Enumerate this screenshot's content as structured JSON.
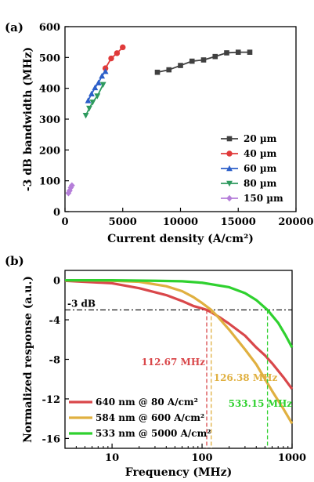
{
  "chart_data": [
    {
      "type": "line",
      "panel_label": "(a)",
      "xlabel": "Current density (A/cm²)",
      "ylabel": "-3 dB bandwidth (MHz)",
      "xlim": [
        0,
        20000
      ],
      "ylim": [
        0,
        600
      ],
      "xticks": [
        "0",
        "5000",
        "10000",
        "15000",
        "20000"
      ],
      "yticks": [
        "0",
        "100",
        "200",
        "300",
        "400",
        "500",
        "600"
      ],
      "legend_position": "bottom-right",
      "series": [
        {
          "name": "20 µm",
          "color": "#404040",
          "marker": "square",
          "x": [
            8000,
            9000,
            10000,
            11000,
            12000,
            13000,
            14000,
            15000,
            16000
          ],
          "y": [
            452,
            460,
            474,
            488,
            492,
            503,
            515,
            517,
            517
          ]
        },
        {
          "name": "40 µm",
          "color": "#e03a3a",
          "marker": "circle",
          "x": [
            3500,
            4000,
            4500,
            5000
          ],
          "y": [
            465,
            497,
            514,
            533
          ]
        },
        {
          "name": "60 µm",
          "color": "#2c5fc9",
          "marker": "triangle-up",
          "x": [
            2000,
            2300,
            2600,
            2900,
            3200,
            3500
          ],
          "y": [
            360,
            382,
            402,
            418,
            440,
            455
          ]
        },
        {
          "name": "80 µm",
          "color": "#2e9a5e",
          "marker": "triangle-down",
          "x": [
            1800,
            2100,
            2400,
            2800,
            3300
          ],
          "y": [
            312,
            335,
            355,
            375,
            412
          ]
        },
        {
          "name": "150 µm",
          "color": "#b57ed9",
          "marker": "diamond",
          "x": [
            300,
            400,
            500,
            600
          ],
          "y": [
            60,
            68,
            78,
            85
          ]
        }
      ]
    },
    {
      "type": "line",
      "panel_label": "(b)",
      "xlabel": "Frequency (MHz)",
      "ylabel": "Normalized response (a.u.)",
      "xscale": "log",
      "xlim": [
        3,
        1000
      ],
      "ylim": [
        -17,
        1
      ],
      "xticks": [
        "10",
        "100",
        "1000"
      ],
      "yticks": [
        "0",
        "-4",
        "-8",
        "-12",
        "-16"
      ],
      "legend_position": "bottom-left",
      "reference_line": {
        "label": "-3 dB",
        "y": -3
      },
      "series": [
        {
          "name": "640 nm @ 80 A/cm²",
          "color": "#d9474a",
          "f3db": 112.67,
          "f3db_label": "112.67 MHz",
          "x": [
            3,
            10,
            20,
            40,
            60,
            80,
            100,
            112.67,
            130,
            160,
            200,
            300,
            400,
            500,
            600,
            800,
            1000
          ],
          "y": [
            -0.05,
            -0.3,
            -0.8,
            -1.5,
            -2.1,
            -2.6,
            -2.85,
            -3,
            -3.3,
            -3.8,
            -4.4,
            -5.6,
            -6.8,
            -7.6,
            -8.4,
            -9.8,
            -11
          ]
        },
        {
          "name": "584 nm @ 600 A/cm²",
          "color": "#e0b040",
          "f3db": 126.38,
          "f3db_label": "126.38 MHz",
          "x": [
            3,
            10,
            20,
            40,
            60,
            80,
            100,
            126.38,
            150,
            200,
            300,
            400,
            500,
            600,
            800,
            1000
          ],
          "y": [
            0,
            -0.05,
            -0.15,
            -0.6,
            -1.1,
            -1.7,
            -2.3,
            -3,
            -3.7,
            -5,
            -7,
            -8.5,
            -10,
            -11.2,
            -13,
            -14.5
          ]
        },
        {
          "name": "533 nm @ 5000 A/cm²",
          "color": "#2fd12f",
          "f3db": 533.15,
          "f3db_label": "533.15 MHz",
          "x": [
            3,
            10,
            30,
            60,
            100,
            200,
            300,
            400,
            533.15,
            700,
            850,
            1000
          ],
          "y": [
            0,
            0,
            -0.05,
            -0.1,
            -0.25,
            -0.7,
            -1.3,
            -2,
            -3,
            -4.3,
            -5.6,
            -6.8
          ]
        }
      ]
    }
  ]
}
